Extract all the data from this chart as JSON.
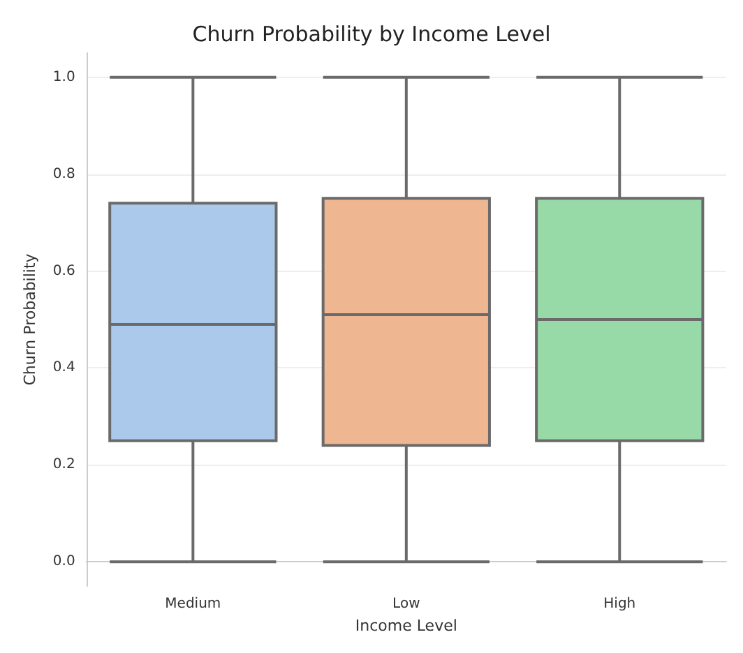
{
  "chart_data": {
    "type": "box",
    "title": "Churn Probability by Income Level",
    "xlabel": "Income Level",
    "ylabel": "Churn Probability",
    "categories": [
      "Medium",
      "Low",
      "High"
    ],
    "colors": [
      "#abc9eb",
      "#efb791",
      "#98daa7"
    ],
    "boxes": [
      {
        "low": 0,
        "q1": 0.25,
        "median": 0.49,
        "q3": 0.74,
        "high": 1.0
      },
      {
        "low": 0,
        "q1": 0.24,
        "median": 0.51,
        "q3": 0.75,
        "high": 1.0
      },
      {
        "low": 0,
        "q1": 0.25,
        "median": 0.5,
        "q3": 0.75,
        "high": 1.0
      }
    ],
    "ylim": [
      -0.05,
      1.05
    ],
    "yticks": [
      {
        "value": 0,
        "label": "0.0"
      },
      {
        "value": 0.2,
        "label": "0.2"
      },
      {
        "value": 0.4,
        "label": "0.4"
      },
      {
        "value": 0.6,
        "label": "0.6"
      },
      {
        "value": 0.8,
        "label": "0.8"
      },
      {
        "value": 1,
        "label": "1.0"
      }
    ],
    "grid": "y"
  }
}
